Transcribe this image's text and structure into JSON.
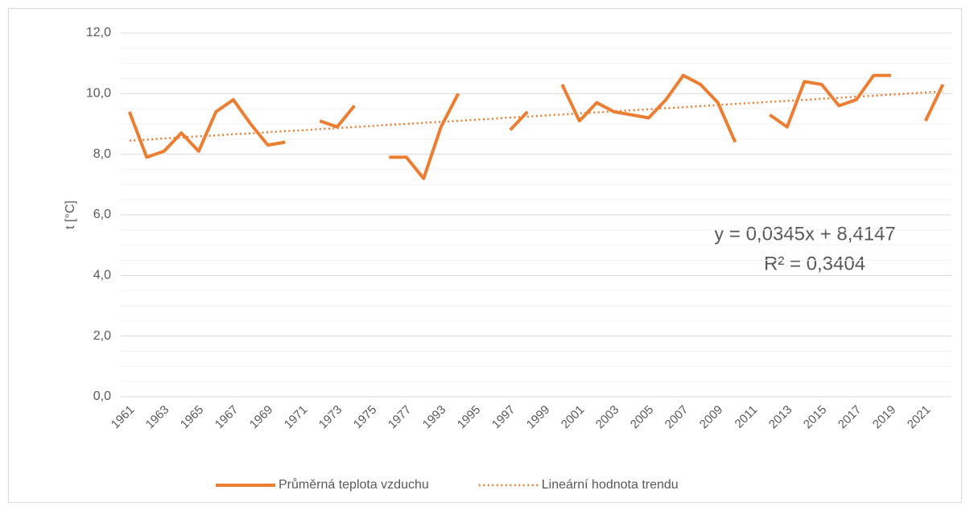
{
  "chart_data": {
    "type": "line",
    "ylabel": "t [°C]",
    "categories": [
      "1961",
      null,
      "1963",
      null,
      "1965",
      null,
      "1967",
      null,
      "1969",
      null,
      "1971",
      null,
      "1973",
      null,
      "1975",
      null,
      "1977",
      null,
      "1993",
      null,
      "1995",
      null,
      "1997",
      null,
      "1999",
      null,
      "2001",
      null,
      "2003",
      null,
      "2005",
      null,
      "2007",
      null,
      "2009",
      null,
      "2011",
      null,
      "2013",
      null,
      "2015",
      null,
      "2017",
      null,
      "2019",
      null,
      "2021",
      null
    ],
    "series": [
      {
        "name": "Průměrná teplota vzduchu",
        "color": "#ED7D31",
        "style": "solid",
        "values": [
          9.4,
          7.9,
          8.1,
          8.7,
          8.1,
          9.4,
          9.8,
          9.0,
          8.3,
          8.4,
          null,
          9.1,
          8.9,
          9.6,
          null,
          7.9,
          7.9,
          7.2,
          8.9,
          10.0,
          null,
          null,
          8.8,
          9.4,
          null,
          10.3,
          9.1,
          9.7,
          9.4,
          9.3,
          9.2,
          9.8,
          10.6,
          10.3,
          9.7,
          8.4,
          null,
          9.3,
          8.9,
          10.4,
          10.3,
          9.6,
          9.8,
          10.6,
          10.6,
          null,
          9.1,
          10.3
        ]
      },
      {
        "name": "Lineární hodnota trendu",
        "color": "#ED7D31",
        "style": "dotted",
        "values": [
          8.45,
          8.48,
          8.52,
          8.55,
          8.59,
          8.62,
          8.66,
          8.69,
          8.73,
          8.76,
          8.79,
          8.83,
          8.86,
          8.9,
          8.93,
          8.97,
          9.0,
          9.04,
          9.07,
          9.1,
          9.14,
          9.17,
          9.21,
          9.24,
          9.28,
          9.31,
          9.35,
          9.38,
          9.42,
          9.45,
          9.48,
          9.52,
          9.55,
          9.59,
          9.62,
          9.66,
          9.69,
          9.73,
          9.76,
          9.79,
          9.83,
          9.86,
          9.9,
          9.93,
          9.97,
          10.0,
          10.04,
          10.07
        ]
      }
    ],
    "annotations": [
      "y = 0,0345x + 8,4147",
      "R² = 0,3404"
    ],
    "ylim": [
      0,
      12
    ],
    "yticks": [
      {
        "value": 0,
        "label": "0,0"
      },
      {
        "value": 2,
        "label": "2,0"
      },
      {
        "value": 4,
        "label": "4,0"
      },
      {
        "value": 6,
        "label": "6,0"
      },
      {
        "value": 8,
        "label": "8,0"
      },
      {
        "value": 10,
        "label": "10,0"
      },
      {
        "value": 12,
        "label": "12,0"
      }
    ],
    "minor_yticks": [
      0.5,
      1,
      1.5,
      2.5,
      3,
      3.5,
      4.5,
      5,
      5.5,
      6.5,
      7,
      7.5,
      8.5,
      9,
      9.5,
      10.5,
      11,
      11.5
    ],
    "grid": true,
    "legend": "bottom"
  }
}
